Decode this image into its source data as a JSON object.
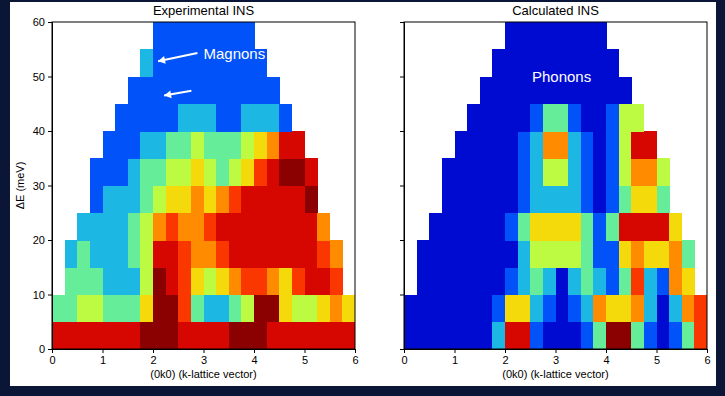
{
  "chart_data": [
    {
      "type": "heatmap",
      "title": "Experimental INS",
      "x_label": "(0k0) (k-lattice vector)",
      "y_label": "ΔE (meV)",
      "xlim": [
        0,
        6
      ],
      "ylim": [
        0,
        60
      ],
      "xticks": [
        0,
        1,
        2,
        3,
        4,
        5,
        6
      ],
      "yticks": [
        0,
        10,
        20,
        30,
        40,
        50,
        60
      ],
      "zlim": [
        0,
        10
      ],
      "x_bins": [
        0,
        0.25,
        0.5,
        0.75,
        1,
        1.25,
        1.5,
        1.75,
        2,
        2.25,
        2.5,
        2.75,
        3,
        3.25,
        3.5,
        3.75,
        4,
        4.25,
        4.5,
        4.75,
        5,
        5.25,
        5.5,
        5.75,
        6
      ],
      "y_bins": [
        0,
        5,
        10,
        15,
        20,
        25,
        30,
        35,
        40,
        45,
        50,
        55,
        60
      ],
      "cells": [
        [
          9,
          9,
          9,
          9,
          9,
          9,
          9,
          10,
          10,
          10,
          9,
          9,
          9,
          9,
          10,
          10,
          10,
          9,
          9,
          9,
          9,
          9,
          9,
          9
        ],
        [
          4,
          4,
          5,
          5,
          4,
          4,
          4,
          6,
          10,
          10,
          8,
          4,
          3,
          3,
          4,
          5,
          10,
          10,
          6,
          5,
          5,
          6,
          7,
          6
        ],
        [
          null,
          4,
          4,
          4,
          3,
          3,
          3,
          5,
          10,
          9,
          8,
          6,
          5,
          6,
          7,
          8,
          8,
          7,
          6,
          8,
          9,
          9,
          8,
          null
        ],
        [
          null,
          3,
          4,
          3,
          3,
          3,
          4,
          5,
          9,
          9,
          8,
          7,
          7,
          8,
          9,
          9,
          9,
          9,
          9,
          9,
          9,
          8,
          7,
          null
        ],
        [
          null,
          null,
          3,
          3,
          3,
          3,
          4,
          5,
          7,
          8,
          7,
          7,
          8,
          9,
          9,
          9,
          9,
          9,
          9,
          9,
          9,
          7,
          null,
          null
        ],
        [
          null,
          null,
          null,
          2,
          3,
          3,
          3,
          4,
          5,
          6,
          6,
          7,
          6,
          7,
          8,
          9,
          9,
          9,
          9,
          9,
          10,
          null,
          null,
          null
        ],
        [
          null,
          null,
          null,
          2,
          2,
          2,
          3,
          4,
          4,
          5,
          5,
          6,
          5,
          4,
          5,
          6,
          8,
          9,
          10,
          10,
          9,
          null,
          null,
          null
        ],
        [
          null,
          null,
          null,
          null,
          2,
          2,
          2,
          3,
          3,
          4,
          4,
          5,
          4,
          4,
          4,
          5,
          6,
          7,
          9,
          9,
          null,
          null,
          null,
          null
        ],
        [
          null,
          null,
          null,
          null,
          null,
          2,
          2,
          2,
          2,
          2,
          3,
          3,
          3,
          2,
          2,
          3,
          3,
          3,
          2,
          null,
          null,
          null,
          null,
          null
        ],
        [
          null,
          null,
          null,
          null,
          null,
          null,
          2,
          2,
          2,
          2,
          2,
          2,
          2,
          2,
          2,
          2,
          2,
          2,
          null,
          null,
          null,
          null,
          null,
          null
        ],
        [
          null,
          null,
          null,
          null,
          null,
          null,
          null,
          3,
          2,
          2,
          2,
          2,
          2,
          2,
          2,
          2,
          2,
          null,
          null,
          null,
          null,
          null,
          null,
          null
        ],
        [
          null,
          null,
          null,
          null,
          null,
          null,
          null,
          null,
          2,
          2,
          2,
          2,
          2,
          2,
          2,
          2,
          null,
          null,
          null,
          null,
          null,
          null,
          null,
          null
        ]
      ],
      "annotations": [
        {
          "text": "Magnons"
        }
      ]
    },
    {
      "type": "heatmap",
      "title": "Calculated INS",
      "x_label": "(0k0) (k-lattice vector)",
      "xlim": [
        0,
        6
      ],
      "ylim": [
        0,
        60
      ],
      "xticks": [
        0,
        1,
        2,
        3,
        4,
        5,
        6
      ],
      "yticks": [
        0,
        10,
        20,
        30,
        40,
        50,
        60
      ],
      "tick_labels": "x",
      "zlim": [
        0,
        10
      ],
      "x_bins": [
        0,
        0.25,
        0.5,
        0.75,
        1,
        1.25,
        1.5,
        1.75,
        2,
        2.25,
        2.5,
        2.75,
        3,
        3.25,
        3.5,
        3.75,
        4,
        4.25,
        4.5,
        4.75,
        5,
        5.25,
        5.5,
        5.75,
        6
      ],
      "y_bins": [
        0,
        5,
        10,
        15,
        20,
        25,
        30,
        35,
        40,
        45,
        50,
        55,
        60
      ],
      "cells": [
        [
          1,
          1,
          1,
          1,
          1,
          1,
          1,
          3,
          9,
          9,
          2,
          1,
          1,
          1,
          2,
          4,
          10,
          10,
          4,
          2,
          1,
          2,
          4,
          8
        ],
        [
          1,
          1,
          1,
          1,
          1,
          1,
          1,
          2,
          6,
          6,
          3,
          2,
          1,
          2,
          3,
          7,
          6,
          6,
          7,
          3,
          1,
          3,
          7,
          8
        ],
        [
          null,
          1,
          1,
          1,
          1,
          1,
          1,
          1,
          2,
          3,
          4,
          3,
          1,
          3,
          4,
          3,
          2,
          4,
          8,
          3,
          2,
          7,
          6,
          null
        ],
        [
          null,
          1,
          1,
          1,
          1,
          1,
          1,
          1,
          1,
          3,
          5,
          5,
          5,
          5,
          4,
          2,
          2,
          6,
          7,
          6,
          6,
          7,
          4,
          null
        ],
        [
          null,
          null,
          1,
          1,
          1,
          1,
          1,
          1,
          2,
          4,
          6,
          6,
          6,
          6,
          4,
          2,
          4,
          9,
          9,
          9,
          9,
          6,
          null,
          null
        ],
        [
          null,
          null,
          null,
          1,
          1,
          1,
          1,
          1,
          1,
          2,
          3,
          3,
          3,
          3,
          2,
          1,
          2,
          4,
          6,
          6,
          4,
          null,
          null,
          null
        ],
        [
          null,
          null,
          null,
          1,
          1,
          1,
          1,
          1,
          1,
          2,
          3,
          5,
          5,
          3,
          2,
          1,
          2,
          5,
          7,
          7,
          5,
          null,
          null,
          null
        ],
        [
          null,
          null,
          null,
          null,
          1,
          1,
          1,
          1,
          1,
          2,
          3,
          7,
          7,
          3,
          2,
          1,
          2,
          5,
          9,
          9,
          null,
          null,
          null,
          null
        ],
        [
          null,
          null,
          null,
          null,
          null,
          1,
          1,
          1,
          1,
          1,
          2,
          4,
          4,
          2,
          1,
          1,
          2,
          5,
          5,
          null,
          null,
          null,
          null,
          null
        ],
        [
          null,
          null,
          null,
          null,
          null,
          null,
          1,
          1,
          1,
          1,
          1,
          1,
          1,
          1,
          1,
          1,
          1,
          1,
          null,
          null,
          null,
          null,
          null,
          null
        ],
        [
          null,
          null,
          null,
          null,
          null,
          null,
          null,
          1,
          1,
          1,
          1,
          1,
          1,
          1,
          1,
          1,
          1,
          null,
          null,
          null,
          null,
          null,
          null,
          null
        ],
        [
          null,
          null,
          null,
          null,
          null,
          null,
          null,
          null,
          1,
          1,
          1,
          1,
          1,
          1,
          1,
          1,
          null,
          null,
          null,
          null,
          null,
          null,
          null,
          null
        ]
      ],
      "annotations": [
        {
          "text": "Phonons"
        }
      ]
    }
  ]
}
